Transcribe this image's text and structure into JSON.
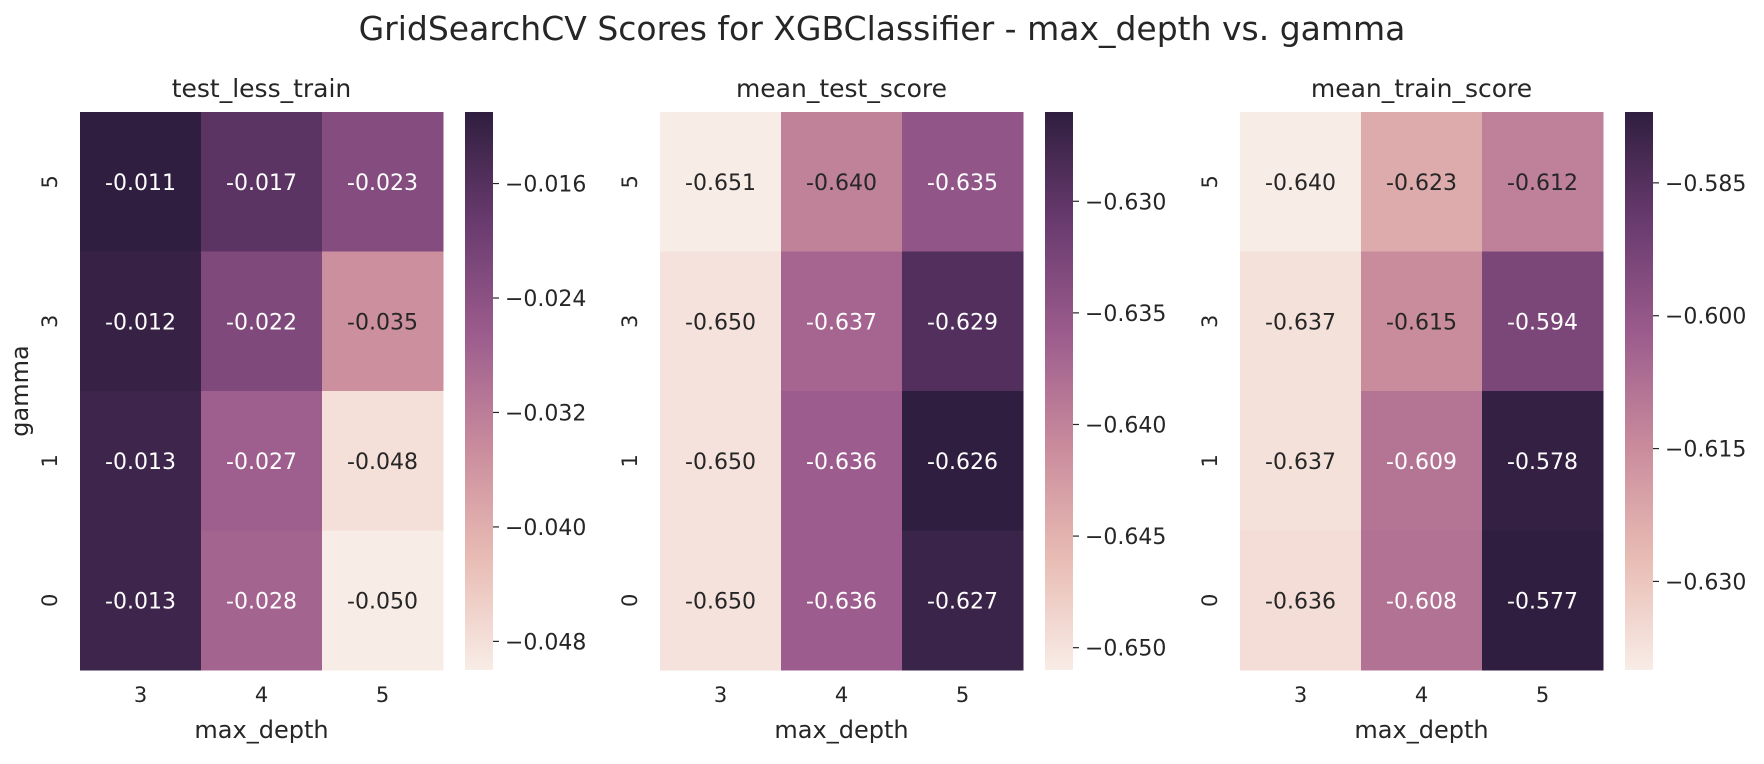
{
  "figure": {
    "title": "GridSearchCV Scores for XGBClassifier - max_depth vs. gamma"
  },
  "palette": {
    "cmap": [
      "#f8ece6",
      "#e8bcb4",
      "#c98b9c",
      "#9c5c8d",
      "#6a3b6f",
      "#2f1e3f"
    ]
  },
  "chart_data": [
    {
      "type": "heatmap",
      "title": "test_less_train",
      "xlabel": "max_depth",
      "ylabel": "gamma",
      "x": [
        "3",
        "4",
        "5"
      ],
      "y": [
        "5",
        "3",
        "1",
        "0"
      ],
      "values": [
        [
          -0.011,
          -0.017,
          -0.023
        ],
        [
          -0.012,
          -0.022,
          -0.035
        ],
        [
          -0.013,
          -0.027,
          -0.048
        ],
        [
          -0.013,
          -0.028,
          -0.05
        ]
      ],
      "labels": [
        [
          "-0.011",
          "-0.017",
          "-0.023"
        ],
        [
          "-0.012",
          "-0.022",
          "-0.035"
        ],
        [
          "-0.013",
          "-0.027",
          "-0.048"
        ],
        [
          "-0.013",
          "-0.028",
          "-0.050"
        ]
      ],
      "vlim": [
        -0.05,
        -0.011
      ],
      "colorbar_ticks": [
        -0.016,
        -0.024,
        -0.032,
        -0.04,
        -0.048
      ],
      "colorbar_labels": [
        "−0.016",
        "−0.024",
        "−0.032",
        "−0.040",
        "−0.048"
      ]
    },
    {
      "type": "heatmap",
      "title": "mean_test_score",
      "xlabel": "max_depth",
      "ylabel": "",
      "x": [
        "3",
        "4",
        "5"
      ],
      "y": [
        "5",
        "3",
        "1",
        "0"
      ],
      "values": [
        [
          -0.651,
          -0.64,
          -0.635
        ],
        [
          -0.65,
          -0.637,
          -0.629
        ],
        [
          -0.65,
          -0.636,
          -0.626
        ],
        [
          -0.65,
          -0.636,
          -0.627
        ]
      ],
      "labels": [
        [
          "-0.651",
          "-0.640",
          "-0.635"
        ],
        [
          "-0.650",
          "-0.637",
          "-0.629"
        ],
        [
          "-0.650",
          "-0.636",
          "-0.626"
        ],
        [
          "-0.650",
          "-0.636",
          "-0.627"
        ]
      ],
      "vlim": [
        -0.651,
        -0.626
      ],
      "colorbar_ticks": [
        -0.63,
        -0.635,
        -0.64,
        -0.645,
        -0.65
      ],
      "colorbar_labels": [
        "−0.630",
        "−0.635",
        "−0.640",
        "−0.645",
        "−0.650"
      ]
    },
    {
      "type": "heatmap",
      "title": "mean_train_score",
      "xlabel": "max_depth",
      "ylabel": "",
      "x": [
        "3",
        "4",
        "5"
      ],
      "y": [
        "5",
        "3",
        "1",
        "0"
      ],
      "values": [
        [
          -0.64,
          -0.623,
          -0.612
        ],
        [
          -0.637,
          -0.615,
          -0.594
        ],
        [
          -0.637,
          -0.609,
          -0.578
        ],
        [
          -0.636,
          -0.608,
          -0.577
        ]
      ],
      "labels": [
        [
          "-0.640",
          "-0.623",
          "-0.612"
        ],
        [
          "-0.637",
          "-0.615",
          "-0.594"
        ],
        [
          "-0.637",
          "-0.609",
          "-0.578"
        ],
        [
          "-0.636",
          "-0.608",
          "-0.577"
        ]
      ],
      "vlim": [
        -0.64,
        -0.577
      ],
      "colorbar_ticks": [
        -0.585,
        -0.6,
        -0.615,
        -0.63
      ],
      "colorbar_labels": [
        "−0.585",
        "−0.600",
        "−0.615",
        "−0.630"
      ]
    }
  ]
}
